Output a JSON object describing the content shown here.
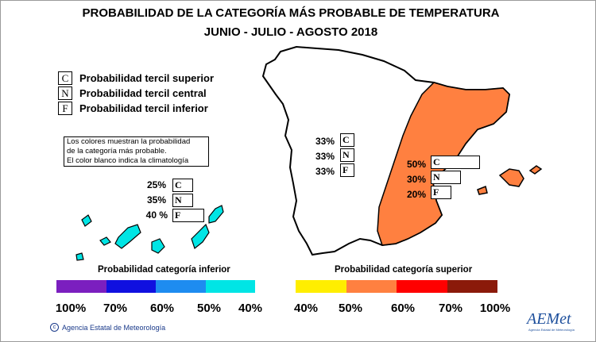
{
  "title": {
    "line1": "PROBABILIDAD DE LA CATEGORÍA MÁS PROBABLE DE TEMPERATURA",
    "line2": "JUNIO - JULIO - AGOSTO 2018"
  },
  "legend": [
    {
      "letter": "C",
      "label": "Probabilidad  tercil superior"
    },
    {
      "letter": "N",
      "label": "Probabilidad  tercil central"
    },
    {
      "letter": "F",
      "label": "Probabilidad  tercil inferior"
    }
  ],
  "note": [
    "Los colores muestran la probabilidad",
    "de la categoría más probable.",
    "El color blanco indica la climatología"
  ],
  "regions": {
    "canarias": {
      "C": "25%",
      "N": "35%",
      "F": "40 %"
    },
    "peninsula_oeste": {
      "C": "33%",
      "N": "33%",
      "F": "33%"
    },
    "este_baleares": {
      "C": "50%",
      "N": "30%",
      "F": "20%"
    }
  },
  "region_colors": {
    "este_baleares": "#FF8040",
    "resto": "#FFFFFF"
  },
  "scale_inferior": {
    "title": "Probabilidad categoría inferior",
    "colors": [
      "#7B1FBF",
      "#1010E0",
      "#1E8CF0",
      "#00E5E5"
    ],
    "ticks": [
      "100%",
      "70%",
      "60%",
      "50%",
      "40%"
    ]
  },
  "scale_superior": {
    "title": "Probabilidad categoría superior",
    "colors": [
      "#FFEE00",
      "#FF8040",
      "#FF0000",
      "#8B1A0A"
    ],
    "ticks": [
      "40%",
      "50%",
      "60%",
      "70%",
      "100%"
    ]
  },
  "agency": "Agencia Estatal de Meteorología",
  "logo": {
    "text": "AEMet",
    "tagline": "Agencia Estatal de Meteorología"
  }
}
